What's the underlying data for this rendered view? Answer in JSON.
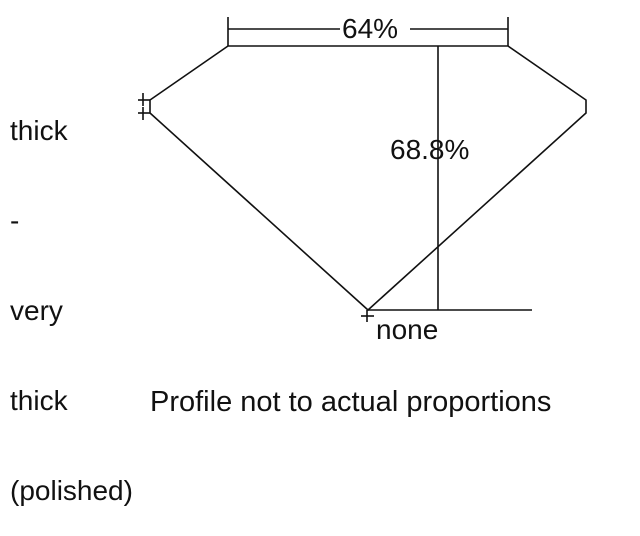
{
  "girdle_label": [
    "thick",
    "-",
    "very",
    "thick",
    "(polished)"
  ],
  "table_label": "64%",
  "depth_label": "68.8%",
  "culet_label": "none",
  "caption": "Profile not to actual proportions",
  "colors": {
    "line": "#111111",
    "background": "#ffffff"
  }
}
